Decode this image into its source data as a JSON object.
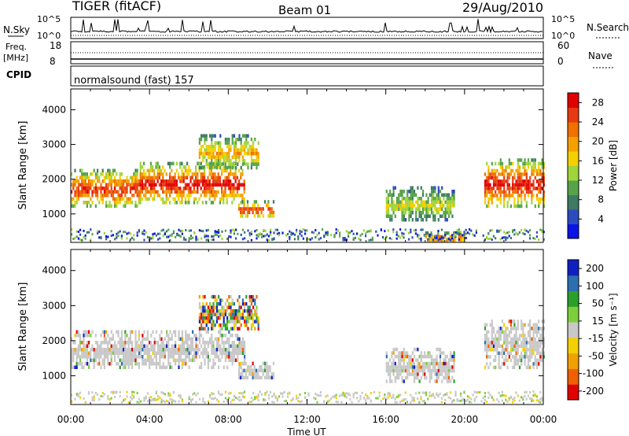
{
  "header": {
    "title": "TIGER (fitACF)",
    "beam": "Beam 01",
    "date": "29/Aug/2010"
  },
  "strips": {
    "nsky_label": "N.Sky",
    "nsearch_label": "N.Search",
    "nsky_ticks": [
      "10^5",
      "10^0"
    ],
    "nsearch_ticks": [
      "10^5",
      "10^0"
    ],
    "freq_label": "Freq.",
    "freq_unit": "[MHz]",
    "freq_ticks": [
      "18",
      "8"
    ],
    "nave_label": "Nave",
    "nave_ticks": [
      "60",
      "0"
    ],
    "cpid_label": "CPID",
    "cpid_text": "normalsound (fast) 157"
  },
  "chart_data": [
    {
      "type": "heatmap",
      "name": "power",
      "title": "",
      "xlabel": "Time UT",
      "ylabel": "Slant Range [km]",
      "x_range_hours": [
        0,
        24
      ],
      "ylim": [
        180,
        4600
      ],
      "y_ticks": [
        1000,
        2000,
        3000,
        4000
      ],
      "x_tick_labels": [
        "00:00",
        "04:00",
        "08:00",
        "12:00",
        "16:00",
        "20:00",
        "00:00"
      ],
      "colorbar": {
        "label": "Power [dB]",
        "ticks": [
          4,
          8,
          12,
          16,
          20,
          24,
          28
        ],
        "range": [
          0,
          30
        ],
        "colors": [
          "#0a14e6",
          "#2c4bbf",
          "#3e7a64",
          "#57a34a",
          "#9fd43a",
          "#f4d000",
          "#f4a000",
          "#f07000",
          "#e83a12",
          "#e00000"
        ]
      },
      "echo_regions": [
        {
          "t0": 0.0,
          "t1": 3.5,
          "r0": 1200,
          "r1": 2300,
          "peak_db": 26
        },
        {
          "t0": 3.5,
          "t1": 8.8,
          "r0": 1300,
          "r1": 2500,
          "peak_db": 28
        },
        {
          "t0": 6.5,
          "t1": 9.5,
          "r0": 2300,
          "r1": 3300,
          "peak_db": 18
        },
        {
          "t0": 8.5,
          "t1": 10.3,
          "r0": 900,
          "r1": 1400,
          "peak_db": 26
        },
        {
          "t0": 16.0,
          "t1": 19.5,
          "r0": 800,
          "r1": 1800,
          "peak_db": 14
        },
        {
          "t0": 18.0,
          "t1": 20.0,
          "r0": 200,
          "r1": 500,
          "peak_db": 24
        },
        {
          "t0": 21.0,
          "t1": 24.0,
          "r0": 1200,
          "r1": 2600,
          "peak_db": 28
        }
      ]
    },
    {
      "type": "heatmap",
      "name": "velocity",
      "title": "",
      "xlabel": "Time UT",
      "ylabel": "Slant Range [km]",
      "x_range_hours": [
        0,
        24
      ],
      "ylim": [
        180,
        4600
      ],
      "y_ticks": [
        1000,
        2000,
        3000,
        4000
      ],
      "x_tick_labels": [
        "00:00",
        "04:00",
        "08:00",
        "12:00",
        "16:00",
        "20:00",
        "00:00"
      ],
      "colorbar": {
        "label": "Velocity [m s⁻¹]",
        "ticks": [
          200,
          100,
          50,
          15,
          -15,
          -50,
          -100,
          -200
        ],
        "range": [
          -250,
          250
        ],
        "ground_scatter_color": "#c8c8c8",
        "colors": [
          "#e00000",
          "#f06000",
          "#f0a000",
          "#f4d000",
          "#c8c8c8",
          "#7ccf3c",
          "#2aa02a",
          "#2c6fb0",
          "#1020c0"
        ]
      },
      "echo_regions": [
        {
          "t0": 0.0,
          "t1": 8.8,
          "r0": 1200,
          "r1": 2300,
          "mode": "ground"
        },
        {
          "t0": 6.5,
          "t1": 9.5,
          "r0": 2300,
          "r1": 3300,
          "mode": "mixed"
        },
        {
          "t0": 8.5,
          "t1": 10.3,
          "r0": 900,
          "r1": 1400,
          "mode": "ground"
        },
        {
          "t0": 16.0,
          "t1": 19.5,
          "r0": 800,
          "r1": 1800,
          "mode": "ground"
        },
        {
          "t0": 21.0,
          "t1": 24.0,
          "r0": 1200,
          "r1": 2600,
          "mode": "ground"
        }
      ]
    }
  ]
}
